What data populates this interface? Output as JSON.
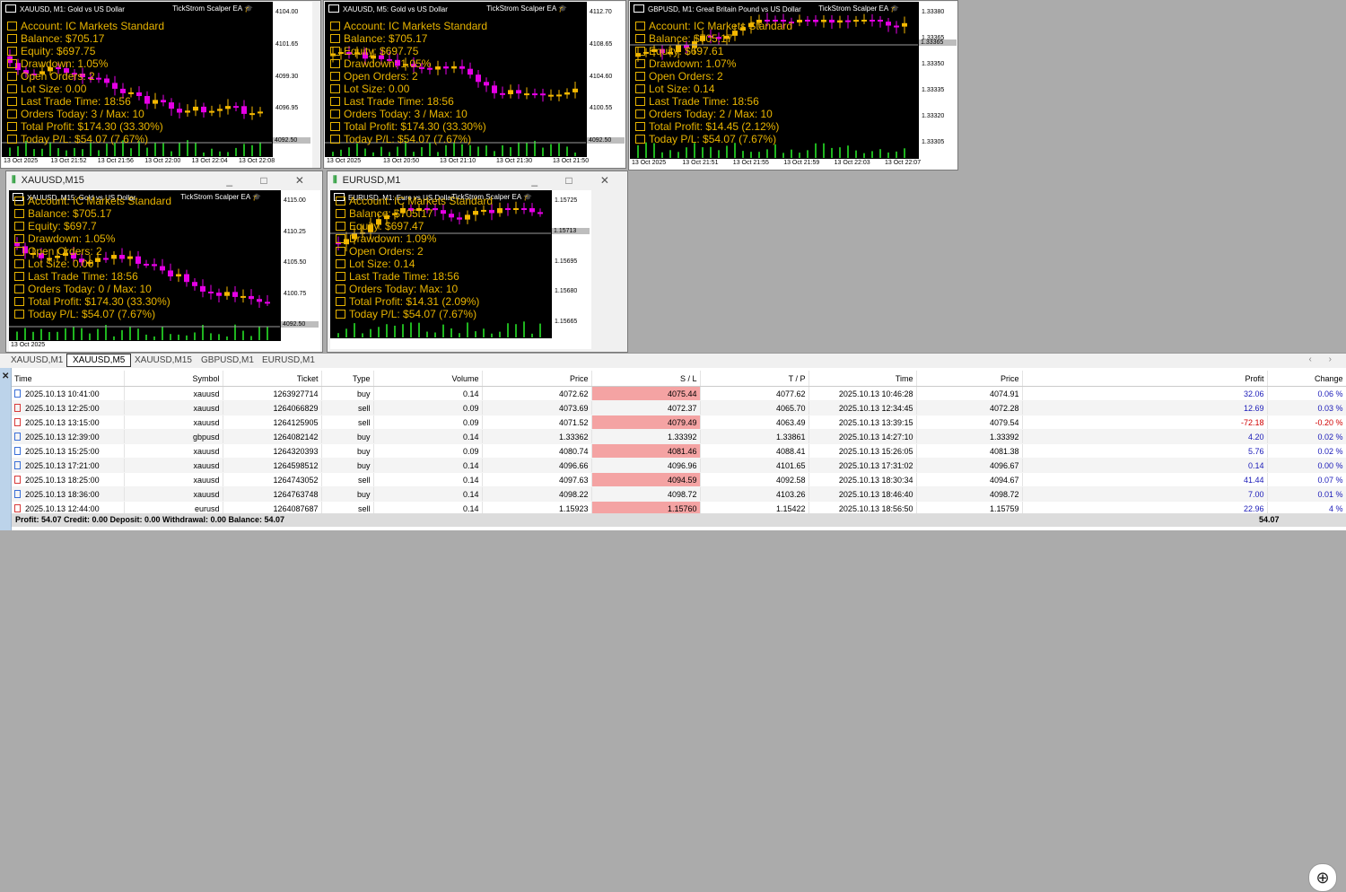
{
  "stat_icons": [
    "ticket-icon",
    "coins-icon",
    "check-box-icon",
    "chart-down-icon",
    "bag-icon",
    "bars-icon",
    "clock-icon",
    "clipboard-icon",
    "ledger-icon",
    "calendar-icon"
  ],
  "windows": [
    {
      "title": "",
      "plot_title": "XAUUSD, M1:  Gold vs US Dollar",
      "ea": "TickStrom Scalper EA",
      "prices": [
        "4104.00",
        "4101.65",
        "4099.30",
        "4096.95",
        "4094.60"
      ],
      "current_price": "4092.50",
      "times": [
        "13 Oct 2025",
        "13 Oct 21:52",
        "13 Oct 21:56",
        "13 Oct 22:00",
        "13 Oct 22:04",
        "13 Oct 22:08"
      ],
      "stats": [
        "Account: IC Markets Standard",
        "Balance: $705.17",
        "Equity: $697.75",
        "Drawdown: 1.05%",
        "Open Orders: 2",
        "Lot Size: 0.00",
        "Last Trade Time: 18:56",
        "Orders Today: 3 / Max: 10",
        "Total Profit: $174.30 (33.30%)",
        "Today P/L: $54.07 (7.67%)"
      ]
    },
    {
      "title": "",
      "plot_title": "XAUUSD, M5:  Gold vs US Dollar",
      "ea": "TickStrom Scalper EA",
      "prices": [
        "4112.70",
        "4108.65",
        "4104.60",
        "4100.55",
        "4096.50"
      ],
      "current_price": "4092.50",
      "times": [
        "13 Oct 2025",
        "13 Oct 20:50",
        "13 Oct 21:10",
        "13 Oct 21:30",
        "13 Oct 21:50"
      ],
      "stats": [
        "Account: IC Markets Standard",
        "Balance: $705.17",
        "Equity: $697.75",
        "Drawdown: 1.05%",
        "Open Orders: 2",
        "Lot Size: 0.00",
        "Last Trade Time: 18:56",
        "Orders Today: 3 / Max: 10",
        "Total Profit: $174.30 (33.30%)",
        "Today P/L: $54.07 (7.67%)"
      ]
    },
    {
      "title": "",
      "plot_title": "GBPUSD, M1:  Great Britain Pound vs US Dollar",
      "ea": "TickStrom Scalper EA",
      "prices": [
        "1.33380",
        "1.33365",
        "1.33350",
        "1.33335",
        "1.33320",
        "1.33305"
      ],
      "current_price": "1.33365",
      "times": [
        "13 Oct 2025",
        "13 Oct 21:51",
        "13 Oct 21:55",
        "13 Oct 21:59",
        "13 Oct 22:03",
        "13 Oct 22:07"
      ],
      "stats": [
        "Account: IC Markets Standard",
        "Balance: $705.17",
        "Equity: $697.61",
        "Drawdown: 1.07%",
        "Open Orders: 2",
        "Lot Size: 0.14",
        "Last Trade Time: 18:56",
        "Orders Today: 2 / Max: 10",
        "Total Profit: $14.45 (2.12%)",
        "Today P/L: $54.07 (7.67%)"
      ]
    },
    {
      "title": "XAUUSD,M15",
      "plot_title": "XAUUSD, M15:  Gold vs US Dollar",
      "ea": "TickStrom Scalper EA",
      "prices": [
        "4115.00",
        "4110.25",
        "4105.50",
        "4100.75",
        "4096.00"
      ],
      "current_price": "4092.50",
      "times": [
        "13 Oct 2025"
      ],
      "stats": [
        "Account: IC Markets Standard",
        "Balance: $705.17",
        "Equity: $697.7",
        "Drawdown: 1.05%",
        "Open Orders: 2",
        "Lot Size: 0.00",
        "Last Trade Time: 18:56",
        "Orders Today: 0 / Max: 10",
        "Total Profit: $174.30 (33.30%)",
        "Today P/L: $54.07 (7.67%)"
      ]
    },
    {
      "title": "EURUSD,M1",
      "plot_title": "EURUSD, M1:  Euro vs US Dollar",
      "ea": "TickStrom Scalper EA",
      "prices": [
        "1.15725",
        "1.15710",
        "1.15695",
        "1.15680",
        "1.15665"
      ],
      "current_price": "1.15713",
      "times": [],
      "stats": [
        "Account: IC Markets Standard",
        "Balance: $705.17",
        "Equity: $697.47",
        "Drawdown: 1.09%",
        "Open Orders: 2",
        "Lot Size: 0.14",
        "Last Trade Time: 18:56",
        "Orders Today:    Max: 10",
        "Total Profit: $14.31 (2.09%)",
        "Today P/L: $54.07 (7.67%)"
      ]
    }
  ],
  "tabs": [
    "XAUUSD,M1",
    "XAUUSD,M5",
    "XAUUSD,M15",
    "GBPUSD,M1",
    "EURUSD,M1"
  ],
  "active_tab": 1,
  "columns": [
    "Time",
    "Symbol",
    "Ticket",
    "Type",
    "Volume",
    "Price",
    "S / L",
    "T / P",
    "Time",
    "Price",
    "Profit",
    "Change"
  ],
  "rows": [
    {
      "time": "2025.10.13 10:41:00",
      "symbol": "xauusd",
      "ticket": "1263927714",
      "type": "buy",
      "volume": "0.14",
      "price": "4072.62",
      "sl": "4075.44",
      "tp": "4077.62",
      "ctime": "2025.10.13 10:46:28",
      "cprice": "4074.91",
      "profit": "32.06",
      "change": "0.06 %"
    },
    {
      "time": "2025.10.13 12:25:00",
      "symbol": "xauusd",
      "ticket": "1264066829",
      "type": "sell",
      "volume": "0.09",
      "price": "4073.69",
      "sl": "4072.37",
      "tp": "4065.70",
      "ctime": "2025.10.13 12:34:45",
      "cprice": "4072.28",
      "profit": "12.69",
      "change": "0.03 %"
    },
    {
      "time": "2025.10.13 13:15:00",
      "symbol": "xauusd",
      "ticket": "1264125905",
      "type": "sell",
      "volume": "0.09",
      "price": "4071.52",
      "sl": "4079.49",
      "tp": "4063.49",
      "ctime": "2025.10.13 13:39:15",
      "cprice": "4079.54",
      "profit": "-72.18",
      "change": "-0.20 %"
    },
    {
      "time": "2025.10.13 12:39:00",
      "symbol": "gbpusd",
      "ticket": "1264082142",
      "type": "buy",
      "volume": "0.14",
      "price": "1.33362",
      "sl": "1.33392",
      "tp": "1.33861",
      "ctime": "2025.10.13 14:27:10",
      "cprice": "1.33392",
      "profit": "4.20",
      "change": "0.02 %"
    },
    {
      "time": "2025.10.13 15:25:00",
      "symbol": "xauusd",
      "ticket": "1264320393",
      "type": "buy",
      "volume": "0.09",
      "price": "4080.74",
      "sl": "4081.46",
      "tp": "4088.41",
      "ctime": "2025.10.13 15:26:05",
      "cprice": "4081.38",
      "profit": "5.76",
      "change": "0.02 %"
    },
    {
      "time": "2025.10.13 17:21:00",
      "symbol": "xauusd",
      "ticket": "1264598512",
      "type": "buy",
      "volume": "0.14",
      "price": "4096.66",
      "sl": "4096.96",
      "tp": "4101.65",
      "ctime": "2025.10.13 17:31:02",
      "cprice": "4096.67",
      "profit": "0.14",
      "change": "0.00 %"
    },
    {
      "time": "2025.10.13 18:25:00",
      "symbol": "xauusd",
      "ticket": "1264743052",
      "type": "sell",
      "volume": "0.14",
      "price": "4097.63",
      "sl": "4094.59",
      "tp": "4092.58",
      "ctime": "2025.10.13 18:30:34",
      "cprice": "4094.67",
      "profit": "41.44",
      "change": "0.07 %"
    },
    {
      "time": "2025.10.13 18:36:00",
      "symbol": "xauusd",
      "ticket": "1264763748",
      "type": "buy",
      "volume": "0.14",
      "price": "4098.22",
      "sl": "4098.72",
      "tp": "4103.26",
      "ctime": "2025.10.13 18:46:40",
      "cprice": "4098.72",
      "profit": "7.00",
      "change": "0.01 %"
    },
    {
      "time": "2025.10.13 12:44:00",
      "symbol": "eurusd",
      "ticket": "1264087687",
      "type": "sell",
      "volume": "0.14",
      "price": "1.15923",
      "sl": "1.15760",
      "tp": "1.15422",
      "ctime": "2025.10.13 18:56:50",
      "cprice": "1.15759",
      "profit": "22.96",
      "change": "4 %"
    }
  ],
  "summary": {
    "label": "Profit: 54.07  Credit: 0.00  Deposit: 0.00  Withdrawal: 0.00  Balance: 54.07",
    "total": "54.07"
  },
  "colors": {
    "bull": "#f5b800",
    "bear": "#e600e6",
    "volume": "#1fb51f",
    "positive": "#1a1ab8",
    "negative": "#d10000",
    "sl_cell": "#f4a3a3"
  }
}
